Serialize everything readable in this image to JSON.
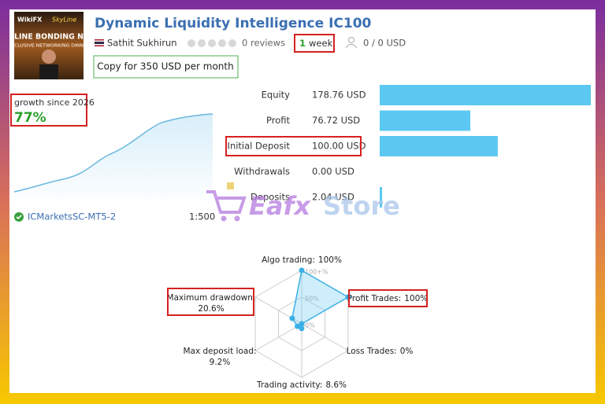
{
  "header": {
    "thumbnail": {
      "brand": "WikiFX",
      "partner": "SkyLine",
      "line1": "LINE BONDING N",
      "line2": "CLUSIVE NETWORKING DINN"
    },
    "title": "Dynamic Liquidity Intelligence IC100",
    "author": "Sathit Sukhirun",
    "reviews": "0 reviews",
    "duration_value": "1",
    "duration_unit": "week",
    "subscribers": "0 / 0 USD",
    "copy_button": "Copy for 350 USD per month"
  },
  "growth": {
    "label": "growth since 2026",
    "value": "77%"
  },
  "account": {
    "broker": "ICMarketsSC-MT5-2",
    "leverage": "1:500"
  },
  "stats": {
    "rows": [
      {
        "name": "Equity",
        "value": 178.76,
        "value_label": "178.76 USD"
      },
      {
        "name": "Profit",
        "value": 76.72,
        "value_label": "76.72 USD"
      },
      {
        "name": "Initial Deposit",
        "value": 100.0,
        "value_label": "100.00 USD"
      },
      {
        "name": "Withdrawals",
        "value": 0.0,
        "value_label": "0.00 USD"
      },
      {
        "name": "Deposits",
        "value": 2.04,
        "value_label": "2.04 USD"
      }
    ]
  },
  "watermark": {
    "part1": "Eafx",
    "part2": "Store"
  },
  "radar": {
    "axes": [
      {
        "name": "Algo trading:",
        "value": 100,
        "value_label": "100%"
      },
      {
        "name": "Profit Trades:",
        "value": 100,
        "value_label": "100%"
      },
      {
        "name": "Loss Trades:",
        "value": 0,
        "value_label": "0%"
      },
      {
        "name": "Trading activity:",
        "value": 8.6,
        "value_label": "8.6%"
      },
      {
        "name": "Max deposit load:",
        "value": 9.2,
        "value_label": "9.2%"
      },
      {
        "name": "Maximum drawdown:",
        "value": 20.6,
        "value_label": "20.6%"
      }
    ],
    "ticks": [
      {
        "value": 100,
        "label": "100+%"
      },
      {
        "value": 50,
        "label": "50%"
      },
      {
        "value": 0,
        "label": "0%"
      }
    ]
  }
}
